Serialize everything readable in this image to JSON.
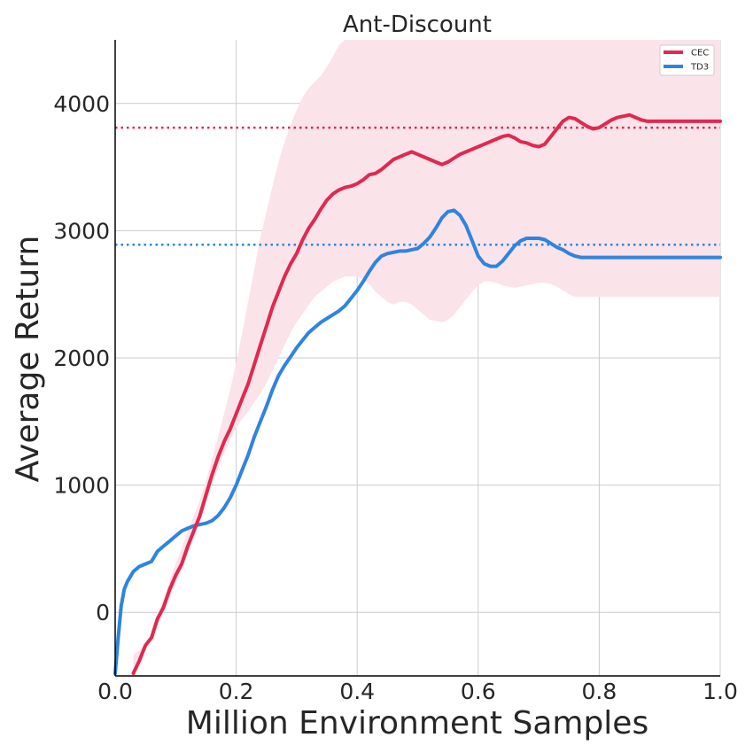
{
  "chart_data": {
    "type": "line",
    "title": "Ant-Discount",
    "xlabel": "Million Environment Samples",
    "ylabel": "Average Return",
    "xlim": [
      0.0,
      1.0
    ],
    "ylim": [
      -500,
      4500
    ],
    "xticks": [
      "0.0",
      "0.2",
      "0.4",
      "0.6",
      "0.8",
      "1.0"
    ],
    "yticks": [
      "0",
      "1000",
      "2000",
      "3000",
      "4000"
    ],
    "grid": true,
    "legend_position": "top-right",
    "series": [
      {
        "name": "CEC",
        "color": "#e0294f",
        "band_color": "#fbe3ea",
        "x": [
          0.03,
          0.04,
          0.05,
          0.06,
          0.07,
          0.08,
          0.09,
          0.1,
          0.11,
          0.12,
          0.13,
          0.14,
          0.15,
          0.16,
          0.17,
          0.18,
          0.19,
          0.2,
          0.21,
          0.22,
          0.23,
          0.24,
          0.25,
          0.26,
          0.27,
          0.28,
          0.29,
          0.3,
          0.31,
          0.32,
          0.33,
          0.34,
          0.35,
          0.36,
          0.37,
          0.38,
          0.39,
          0.4,
          0.41,
          0.42,
          0.43,
          0.44,
          0.45,
          0.46,
          0.47,
          0.48,
          0.49,
          0.5,
          0.51,
          0.52,
          0.53,
          0.54,
          0.55,
          0.56,
          0.57,
          0.58,
          0.59,
          0.6,
          0.61,
          0.62,
          0.63,
          0.64,
          0.65,
          0.66,
          0.67,
          0.68,
          0.69,
          0.7,
          0.71,
          0.72,
          0.73,
          0.74,
          0.75,
          0.76,
          0.77,
          0.78,
          0.79,
          0.8,
          0.81,
          0.82,
          0.83,
          0.84,
          0.85,
          0.86,
          0.87,
          0.88,
          0.89,
          0.9,
          0.91,
          0.92,
          0.93,
          0.94,
          0.95,
          0.96,
          0.97,
          0.98,
          0.99,
          1.0
        ],
        "values": [
          -480,
          -380,
          -260,
          -200,
          -50,
          40,
          180,
          290,
          380,
          520,
          640,
          760,
          920,
          1080,
          1220,
          1340,
          1440,
          1560,
          1680,
          1800,
          1950,
          2100,
          2250,
          2400,
          2520,
          2640,
          2740,
          2820,
          2930,
          3020,
          3090,
          3170,
          3240,
          3290,
          3320,
          3340,
          3350,
          3370,
          3400,
          3440,
          3450,
          3480,
          3520,
          3560,
          3580,
          3600,
          3620,
          3600,
          3580,
          3560,
          3540,
          3520,
          3540,
          3570,
          3600,
          3620,
          3640,
          3660,
          3680,
          3700,
          3720,
          3740,
          3750,
          3730,
          3700,
          3690,
          3670,
          3660,
          3680,
          3740,
          3800,
          3860,
          3890,
          3880,
          3850,
          3820,
          3800,
          3810,
          3840,
          3870,
          3890,
          3900,
          3910,
          3890,
          3870,
          3860,
          3860,
          3860,
          3860,
          3860,
          3860,
          3860,
          3860,
          3860,
          3860,
          3860,
          3860,
          3860
        ],
        "band_lower": [
          -480,
          -380,
          -260,
          -200,
          -100,
          0,
          120,
          230,
          330,
          460,
          580,
          700,
          850,
          1000,
          1130,
          1250,
          1350,
          1450,
          1520,
          1580,
          1650,
          1720,
          1800,
          1900,
          2000,
          2100,
          2200,
          2280,
          2350,
          2420,
          2480,
          2520,
          2560,
          2600,
          2620,
          2640,
          2640,
          2640,
          2620,
          2580,
          2520,
          2480,
          2440,
          2420,
          2440,
          2440,
          2420,
          2380,
          2340,
          2300,
          2290,
          2280,
          2300,
          2340,
          2400,
          2460,
          2520,
          2570,
          2600,
          2600,
          2590,
          2570,
          2560,
          2550,
          2560,
          2570,
          2580,
          2590,
          2590,
          2580,
          2560,
          2530,
          2500,
          2480,
          2480,
          2480,
          2480,
          2480,
          2480,
          2480,
          2480,
          2480,
          2480,
          2480,
          2480,
          2480,
          2480,
          2480,
          2480,
          2480,
          2480,
          2480,
          2480,
          2480,
          2480,
          2480,
          2480,
          2480
        ],
        "band_upper": [
          -330,
          -300,
          -250,
          -180,
          -20,
          100,
          250,
          380,
          500,
          640,
          760,
          880,
          1030,
          1200,
          1380,
          1560,
          1750,
          1960,
          2200,
          2450,
          2700,
          2950,
          3150,
          3350,
          3540,
          3700,
          3830,
          3950,
          4050,
          4120,
          4170,
          4220,
          4290,
          4370,
          4460,
          4600,
          4600,
          4600,
          4600,
          4600,
          4600,
          4600,
          4600,
          4600,
          4600,
          4600,
          4600,
          4600,
          4600,
          4600,
          4600,
          4600,
          4600,
          4600,
          4600,
          4600,
          4600,
          4600,
          4600,
          4600,
          4600,
          4600,
          4600,
          4600,
          4600,
          4600,
          4600,
          4600,
          4600,
          4600,
          4600,
          4600,
          4600,
          4600,
          4600,
          4600,
          4600,
          4600,
          4600,
          4600,
          4600,
          4600,
          4600,
          4600,
          4600,
          4600,
          4600,
          4600,
          4600,
          4600,
          4600,
          4600,
          4600,
          4600,
          4600,
          4600,
          4600,
          4600
        ]
      },
      {
        "name": "TD3",
        "color": "#2f84de",
        "x": [
          0.0,
          0.005,
          0.01,
          0.015,
          0.02,
          0.03,
          0.04,
          0.05,
          0.06,
          0.07,
          0.08,
          0.09,
          0.1,
          0.11,
          0.12,
          0.13,
          0.14,
          0.15,
          0.16,
          0.17,
          0.18,
          0.19,
          0.2,
          0.21,
          0.22,
          0.23,
          0.24,
          0.25,
          0.26,
          0.27,
          0.28,
          0.29,
          0.3,
          0.31,
          0.32,
          0.33,
          0.34,
          0.35,
          0.36,
          0.37,
          0.38,
          0.39,
          0.4,
          0.41,
          0.42,
          0.43,
          0.44,
          0.45,
          0.46,
          0.47,
          0.48,
          0.49,
          0.5,
          0.51,
          0.52,
          0.53,
          0.54,
          0.55,
          0.56,
          0.57,
          0.58,
          0.59,
          0.6,
          0.61,
          0.62,
          0.63,
          0.64,
          0.65,
          0.66,
          0.67,
          0.68,
          0.69,
          0.7,
          0.71,
          0.72,
          0.73,
          0.74,
          0.75,
          0.76,
          0.77,
          0.78,
          0.79,
          0.8,
          0.81,
          0.82,
          0.83,
          0.84,
          0.85,
          0.86,
          0.87,
          0.88,
          0.89,
          0.9,
          0.91,
          0.92,
          0.93,
          0.94,
          0.95,
          0.96,
          0.97,
          0.98,
          0.99,
          1.0
        ],
        "values": [
          -480,
          -200,
          50,
          180,
          240,
          320,
          360,
          380,
          400,
          480,
          520,
          560,
          600,
          640,
          660,
          680,
          690,
          700,
          720,
          760,
          820,
          900,
          1000,
          1120,
          1240,
          1380,
          1500,
          1620,
          1750,
          1860,
          1940,
          2010,
          2080,
          2140,
          2200,
          2240,
          2280,
          2310,
          2340,
          2370,
          2410,
          2470,
          2530,
          2600,
          2680,
          2750,
          2800,
          2820,
          2830,
          2840,
          2840,
          2850,
          2860,
          2900,
          2950,
          3020,
          3100,
          3150,
          3160,
          3120,
          3040,
          2920,
          2800,
          2740,
          2720,
          2720,
          2760,
          2820,
          2880,
          2920,
          2940,
          2940,
          2940,
          2930,
          2900,
          2870,
          2850,
          2820,
          2800,
          2790,
          2790,
          2790,
          2790,
          2790,
          2790,
          2790,
          2790,
          2790,
          2790,
          2790,
          2790,
          2790,
          2790,
          2790,
          2790,
          2790,
          2790,
          2790,
          2790,
          2790,
          2790,
          2790,
          2790
        ],
        "x_trim_to": 1.0
      }
    ],
    "reference_lines": [
      {
        "series": "CEC",
        "y": 3810,
        "style": "dotted",
        "color": "#e0294f"
      },
      {
        "series": "TD3",
        "y": 2890,
        "style": "dotted",
        "color": "#2f84de"
      }
    ]
  }
}
